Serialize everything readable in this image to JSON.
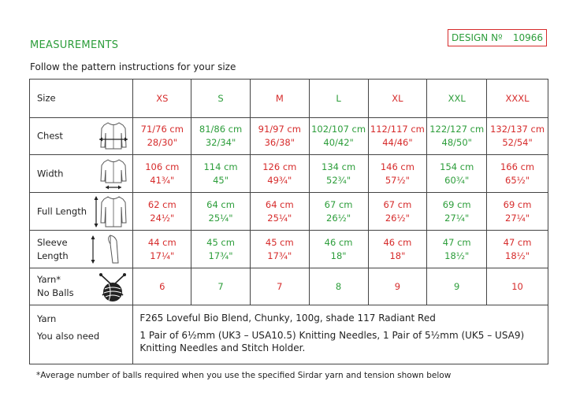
{
  "heading": "MEASUREMENTS",
  "design": {
    "label": "DESIGN Nº",
    "number": "10966"
  },
  "subtitle": "Follow the pattern instructions for your size",
  "size_row": {
    "label": "Size",
    "sizes": [
      "XS",
      "S",
      "M",
      "L",
      "XL",
      "XXL",
      "XXXL"
    ]
  },
  "chest": {
    "label": "Chest",
    "cm": [
      "71/76 cm",
      "81/86 cm",
      "91/97 cm",
      "102/107 cm",
      "112/117 cm",
      "122/127 cm",
      "132/137 cm"
    ],
    "in": [
      "28/30\"",
      "32/34\"",
      "36/38\"",
      "40/42\"",
      "44/46\"",
      "48/50\"",
      "52/54\""
    ]
  },
  "width": {
    "label": "Width",
    "cm": [
      "106 cm",
      "114 cm",
      "126 cm",
      "134 cm",
      "146 cm",
      "154 cm",
      "166 cm"
    ],
    "in": [
      "41¾\"",
      "45\"",
      "49¾\"",
      "52¾\"",
      "57½\"",
      "60¾\"",
      "65½\""
    ]
  },
  "full_length": {
    "label": "Full Length",
    "cm": [
      "62 cm",
      "64 cm",
      "64 cm",
      "67 cm",
      "67 cm",
      "69 cm",
      "69 cm"
    ],
    "in": [
      "24½\"",
      "25¼\"",
      "25¼\"",
      "26½\"",
      "26½\"",
      "27¼\"",
      "27¼\""
    ]
  },
  "sleeve_length": {
    "label1": "Sleeve",
    "label2": "Length",
    "cm": [
      "44 cm",
      "45 cm",
      "45 cm",
      "46 cm",
      "46 cm",
      "47 cm",
      "47 cm"
    ],
    "in": [
      "17¼\"",
      "17¾\"",
      "17¾\"",
      "18\"",
      "18\"",
      "18½\"",
      "18½\""
    ]
  },
  "yarn_balls": {
    "label1": "Yarn*",
    "label2": "No Balls",
    "values": [
      "6",
      "7",
      "7",
      "8",
      "9",
      "9",
      "10"
    ]
  },
  "yarn": {
    "label": "Yarn",
    "value": "F265 Loveful Bio Blend, Chunky, 100g, shade 117 Radiant Red"
  },
  "also_need": {
    "label": "You also need",
    "line1": "1 Pair of 6½mm (UK3 – USA10.5) Knitting Needles, 1 Pair of 5½mm (UK5 – USA9)",
    "line2": "Knitting Needles and Stitch Holder."
  },
  "footnote": "*Average number of balls required when you use the specified Sirdar yarn and tension shown below",
  "colors": {
    "accent_green": "#2c9d3a",
    "accent_red": "#d62b2b"
  },
  "icons": [
    "chest-width-sweater-icon",
    "width-sweater-icon",
    "full-length-sweater-icon",
    "sleeve-length-icon",
    "yarn-ball-needles-icon"
  ]
}
